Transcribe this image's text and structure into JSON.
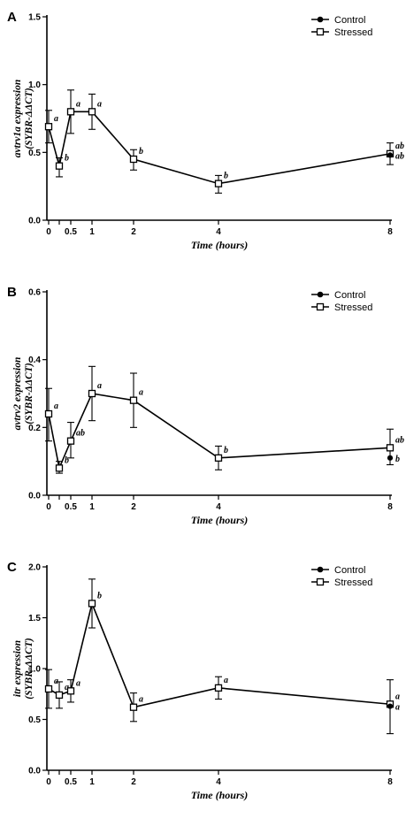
{
  "panels": [
    {
      "label": "A",
      "ylabel_line1": "avtrv1a expression",
      "ylabel_line2": "(SYBR-ΔΔCT)",
      "xlabel": "Time (hours)",
      "ylim": [
        0,
        1.5
      ],
      "yticks": [
        0,
        0.5,
        1.0,
        1.5
      ],
      "ytick_labels": [
        "0.0",
        "0.5",
        "1.0",
        "1.5"
      ],
      "xticks": [
        0,
        0.25,
        0.5,
        1,
        2,
        4,
        8
      ],
      "xtick_labels": [
        "0",
        "",
        "0.5",
        "1",
        "2",
        "4",
        "8"
      ],
      "legend": [
        "Control",
        "Stressed"
      ],
      "series": [
        {
          "name": "Stressed",
          "marker": "open-square",
          "x": [
            0,
            0.25,
            0.5,
            1,
            2,
            4,
            8
          ],
          "y": [
            0.69,
            0.4,
            0.8,
            0.8,
            0.45,
            0.27,
            0.49
          ],
          "err_low": [
            0.12,
            0.08,
            0.16,
            0.13,
            0.08,
            0.07,
            0.08
          ],
          "err_high": [
            0.12,
            0.06,
            0.16,
            0.13,
            0.07,
            0.06,
            0.08
          ],
          "sig": [
            "a",
            "b",
            "a",
            "a",
            "b",
            "b",
            "ab"
          ]
        },
        {
          "name": "Control",
          "marker": "filled-circle",
          "x": [
            8
          ],
          "y": [
            0.48
          ],
          "sig": [
            "ab"
          ]
        }
      ]
    },
    {
      "label": "B",
      "ylabel_line1": "avtrv2 expression",
      "ylabel_line2": "(SYBR-ΔΔCT)",
      "xlabel": "Time (hours)",
      "ylim": [
        0,
        0.6
      ],
      "yticks": [
        0,
        0.2,
        0.4,
        0.6
      ],
      "ytick_labels": [
        "0.0",
        "0.2",
        "0.4",
        "0.6"
      ],
      "xticks": [
        0,
        0.25,
        0.5,
        1,
        2,
        4,
        8
      ],
      "xtick_labels": [
        "0",
        "",
        "0.5",
        "1",
        "2",
        "4",
        "8"
      ],
      "legend": [
        "Control",
        "Stressed"
      ],
      "series": [
        {
          "name": "Stressed",
          "marker": "open-square",
          "x": [
            0,
            0.25,
            0.5,
            1,
            2,
            4,
            8
          ],
          "y": [
            0.24,
            0.08,
            0.16,
            0.3,
            0.28,
            0.11,
            0.14
          ],
          "err_low": [
            0.08,
            0.015,
            0.05,
            0.08,
            0.08,
            0.035,
            0.05
          ],
          "err_high": [
            0.075,
            0.02,
            0.055,
            0.08,
            0.08,
            0.035,
            0.055
          ],
          "sig": [
            "a",
            "b",
            "ab",
            "a",
            "a",
            "b",
            "ab"
          ]
        },
        {
          "name": "Control",
          "marker": "filled-circle",
          "x": [
            8
          ],
          "y": [
            0.11
          ],
          "sig": [
            "b"
          ]
        }
      ]
    },
    {
      "label": "C",
      "ylabel_line1": "itr expression",
      "ylabel_line2": "(SYBR-ΔΔCT)",
      "xlabel": "Time (hours)",
      "ylim": [
        0,
        2.0
      ],
      "yticks": [
        0,
        0.5,
        1.0,
        1.5,
        2.0
      ],
      "ytick_labels": [
        "0.0",
        "0.5",
        "1.0",
        "1.5",
        "2.0"
      ],
      "xticks": [
        0,
        0.25,
        0.5,
        1,
        2,
        4,
        8
      ],
      "xtick_labels": [
        "0",
        "",
        "0.5",
        "1",
        "2",
        "4",
        "8"
      ],
      "legend": [
        "Control",
        "Stressed"
      ],
      "series": [
        {
          "name": "Stressed",
          "marker": "open-square",
          "x": [
            0,
            0.25,
            0.5,
            1,
            2,
            4,
            8
          ],
          "y": [
            0.8,
            0.74,
            0.78,
            1.64,
            0.62,
            0.81,
            0.65
          ],
          "err_low": [
            0.19,
            0.13,
            0.11,
            0.24,
            0.14,
            0.11,
            0.29
          ],
          "err_high": [
            0.19,
            0.13,
            0.11,
            0.24,
            0.14,
            0.11,
            0.24
          ],
          "sig": [
            "a",
            "a",
            "a",
            "b",
            "a",
            "a",
            "a"
          ]
        },
        {
          "name": "Control",
          "marker": "filled-circle",
          "x": [
            8
          ],
          "y": [
            0.63
          ],
          "sig": [
            "a"
          ]
        }
      ]
    }
  ],
  "chart_data": [
    {
      "type": "line",
      "panel": "A",
      "x": [
        0,
        0.25,
        0.5,
        1,
        2,
        4,
        8
      ],
      "xlabel": "Time (hours)",
      "ylabel": "avtrv1a expression (SYBR-ΔΔCT)",
      "ylim": [
        0,
        1.5
      ],
      "series": [
        {
          "name": "Stressed",
          "values": [
            0.69,
            0.4,
            0.8,
            0.8,
            0.45,
            0.27,
            0.49
          ]
        },
        {
          "name": "Control",
          "x": [
            8
          ],
          "values": [
            0.48
          ]
        }
      ],
      "legend": "top-right",
      "grid": false
    },
    {
      "type": "line",
      "panel": "B",
      "x": [
        0,
        0.25,
        0.5,
        1,
        2,
        4,
        8
      ],
      "xlabel": "Time (hours)",
      "ylabel": "avtrv2 expression (SYBR-ΔΔCT)",
      "ylim": [
        0,
        0.6
      ],
      "series": [
        {
          "name": "Stressed",
          "values": [
            0.24,
            0.08,
            0.16,
            0.3,
            0.28,
            0.11,
            0.14
          ]
        },
        {
          "name": "Control",
          "x": [
            8
          ],
          "values": [
            0.11
          ]
        }
      ],
      "legend": "top-right",
      "grid": false
    },
    {
      "type": "line",
      "panel": "C",
      "x": [
        0,
        0.25,
        0.5,
        1,
        2,
        4,
        8
      ],
      "xlabel": "Time (hours)",
      "ylabel": "itr expression (SYBR-ΔΔCT)",
      "ylim": [
        0,
        2.0
      ],
      "series": [
        {
          "name": "Stressed",
          "values": [
            0.8,
            0.74,
            0.78,
            1.64,
            0.62,
            0.81,
            0.65
          ]
        },
        {
          "name": "Control",
          "x": [
            8
          ],
          "values": [
            0.63
          ]
        }
      ],
      "legend": "top-right",
      "grid": false
    }
  ]
}
